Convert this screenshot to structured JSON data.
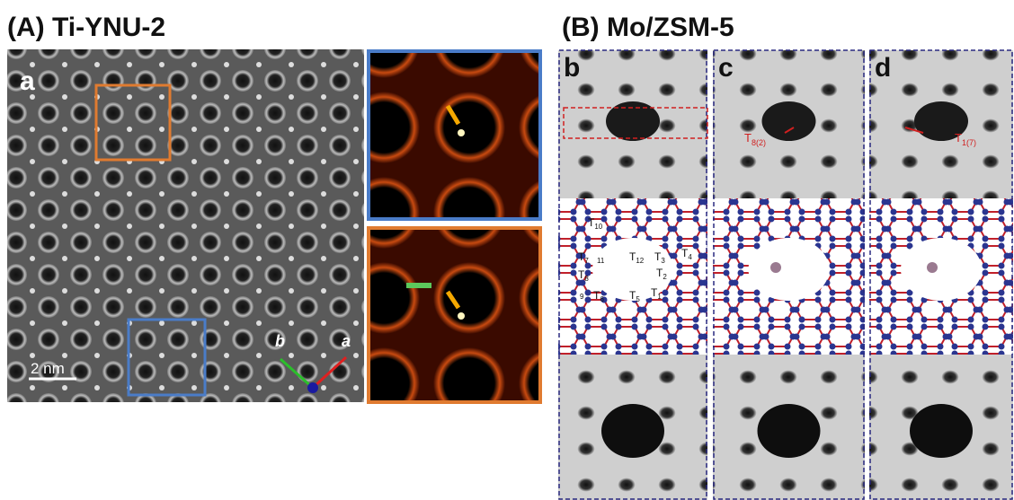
{
  "panel_a": {
    "title": "(A) Ti-YNU-2",
    "label": "a",
    "scale_bar": "2 nm",
    "axes": [
      "b",
      "a"
    ]
  },
  "panel_b": {
    "title": "(B) Mo/ZSM-5",
    "columns": [
      {
        "label": "b"
      },
      {
        "label": "c",
        "site": {
          "letter": "T",
          "sub": "8(2)"
        }
      },
      {
        "label": "d",
        "site": {
          "letter": "T",
          "sub": "1(7)"
        }
      }
    ],
    "t_sites": [
      {
        "letter": "T",
        "sub": "10"
      },
      {
        "letter": "T",
        "sub": "7"
      },
      {
        "letter": "",
        "sub": "11"
      },
      {
        "letter": "T",
        "sub": "12"
      },
      {
        "letter": "T",
        "sub": "3"
      },
      {
        "letter": "T",
        "sub": "4"
      },
      {
        "letter": "T",
        "sub": "8"
      },
      {
        "letter": "T",
        "sub": "2"
      },
      {
        "letter": "",
        "sub": "9"
      },
      {
        "letter": "T",
        "sub": "6"
      },
      {
        "letter": "T",
        "sub": "5"
      },
      {
        "letter": "T",
        "sub": "1"
      }
    ]
  }
}
